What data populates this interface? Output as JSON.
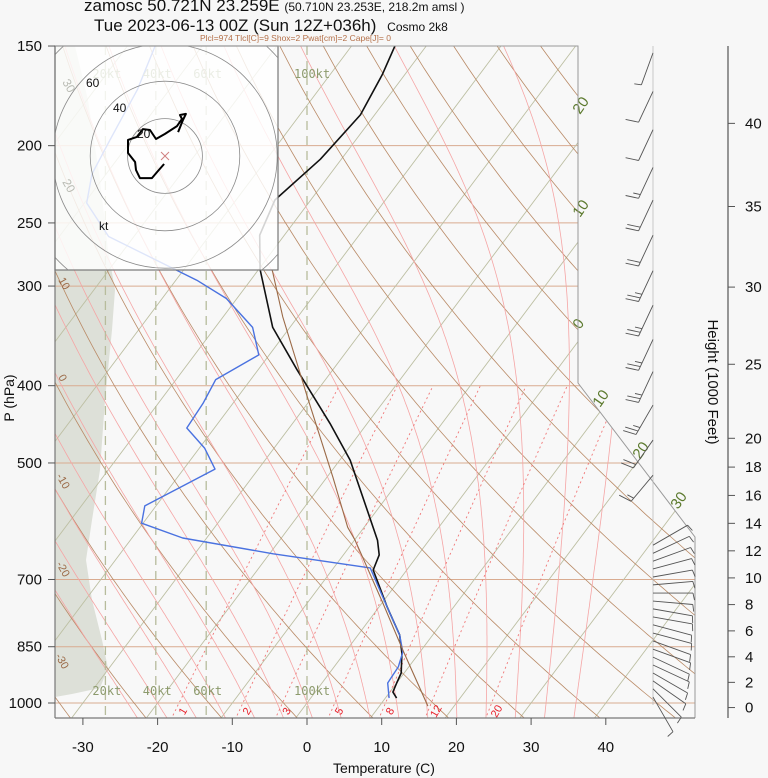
{
  "header": {
    "station": "zamosc 50.721N 23.259E",
    "location_detail": "(50.710N 23.253E, 218.2m amsl )",
    "valid_time": "Tue 2023-06-13 00Z (Sun 12Z+036h)",
    "model": "Cosmo 2k8",
    "indices": "Plcl=974 Tlcl[C]=9 Shox=2 Pwat[cm]=2 Cape[J]= 0"
  },
  "chart_data": {
    "type": "line",
    "title": "zamosc 50.721N 23.259E  Tue 2023-06-13 00Z (Sun 12Z+036h)",
    "xlabel": "Temperature (C)",
    "ylabel": "P (hPa)",
    "y2label": "Height (1000 Feet)",
    "xlim": [
      -33.7,
      36.4
    ],
    "ylim": [
      1050,
      150
    ],
    "x_ticks": [
      "-30",
      "-20",
      "-10",
      "0",
      "10",
      "20",
      "30",
      "40"
    ],
    "x_tick_values": [
      -30,
      -20,
      -10,
      0,
      10,
      20,
      30,
      40
    ],
    "y_ticks": [
      "150",
      "200",
      "250",
      "300",
      "400",
      "500",
      "700",
      "850",
      "1000"
    ],
    "y_tick_values": [
      150,
      200,
      250,
      300,
      400,
      500,
      700,
      850,
      1000
    ],
    "height_ticks": [
      "0",
      "2",
      "4",
      "6",
      "8",
      "10",
      "12",
      "14",
      "16",
      "18",
      "20",
      "25",
      "30",
      "35",
      "40"
    ],
    "height_tick_values_kft": [
      0,
      2,
      4,
      6,
      8,
      10,
      12,
      14,
      16,
      18,
      20,
      25,
      30,
      35,
      40
    ],
    "isobars_hpa": [
      150,
      200,
      250,
      300,
      400,
      500,
      700,
      850,
      1000
    ],
    "isotherm_labels": [
      "20",
      "10",
      "0",
      "10",
      "20",
      "30"
    ],
    "adiabat_labels": [
      "10",
      "0",
      "-10",
      "-20",
      "-30"
    ],
    "shaded_labels": [
      "30",
      "20"
    ],
    "mixing_ratio_gkg": [
      1,
      2,
      3,
      5,
      8,
      12,
      20
    ],
    "mixing_ratio_labels": [
      "1",
      "2",
      "3",
      "5",
      "8",
      "12",
      "20"
    ],
    "speed_scale_kt": [
      20,
      40,
      60,
      100
    ],
    "speed_scale_labels": [
      "20kt",
      "40kt",
      "60kt",
      "100kt"
    ],
    "series": [
      {
        "name": "temperature",
        "color": "#111111",
        "pressure": [
          986,
          969,
          944,
          917,
          866,
          822,
          758,
          681,
          652,
          625,
          496,
          446,
          382,
          338,
          286,
          259,
          234,
          208,
          183,
          163,
          150
        ],
        "values": [
          11.5,
          10.4,
          10.0,
          9.6,
          7.7,
          5.6,
          1.1,
          -4.5,
          -5.2,
          -6.9,
          -18.6,
          -25.0,
          -34.8,
          -42.3,
          -49.8,
          -53.3,
          -54.8,
          -52.8,
          -51.9,
          -53.0,
          -54.2
        ]
      },
      {
        "name": "dewpoint",
        "color": "#4a72e0",
        "pressure": [
          986,
          944,
          901,
          863,
          822,
          758,
          677,
          650,
          621,
          595,
          566,
          509,
          479,
          452,
          421,
          393,
          366,
          338,
          311,
          295,
          260,
          236,
          217,
          197,
          170,
          150
        ],
        "values": [
          10.5,
          8.8,
          8.6,
          7.7,
          5.6,
          1.1,
          -5.1,
          -19.5,
          -33.2,
          -40.2,
          -41.5,
          -35.8,
          -39.3,
          -43.7,
          -44.0,
          -44.7,
          -41.4,
          -45.0,
          -51.4,
          -57.2,
          -73.4,
          -79.7,
          -81.9,
          -82.9,
          -84.3,
          -86.3
        ]
      },
      {
        "name": "parcel",
        "color": "#9b6a47",
        "pressure": [
          1009,
          858,
          749,
          625,
          602,
          521,
          413,
          328,
          286
        ],
        "values": [
          16.5,
          7.5,
          0.1,
          -9.9,
          -12.2,
          -19.2,
          -30.7,
          -42.0,
          -48.2
        ]
      }
    ],
    "hodograph": {
      "ring_labels": [
        "20",
        "40",
        "60"
      ],
      "ring_values_kt": [
        20,
        40,
        60,
        80
      ],
      "unit_label": "kt",
      "u_kt": [
        -0.5,
        -4.3,
        -7.0,
        -13.4,
        -15.5,
        -16.0,
        -19.8,
        -19.8,
        -15.0,
        -11.8,
        -8.0,
        -4.8,
        0,
        6.4,
        9.1,
        8.0,
        11.2,
        9.6,
        7.0
      ],
      "v_kt": [
        -4.3,
        -8.6,
        -11.8,
        -11.8,
        -7.5,
        -3.2,
        1.6,
        8.6,
        10.2,
        14.4,
        13.9,
        9.1,
        11.8,
        16.0,
        19.8,
        21.9,
        22.5,
        19.3,
        12.8
      ]
    },
    "winds": {
      "pressure": [
        153,
        171,
        191,
        213,
        234,
        259,
        287,
        317,
        350,
        384,
        423,
        468,
        518,
        634,
        649,
        664,
        679,
        695,
        711,
        728,
        745,
        762,
        780,
        798,
        817,
        836,
        856,
        876,
        896,
        917,
        938,
        960,
        983
      ],
      "direction_deg": [
        200,
        205,
        205,
        205,
        205,
        205,
        205,
        205,
        205,
        205,
        210,
        215,
        220,
        60,
        65,
        70,
        75,
        80,
        85,
        90,
        95,
        100,
        100,
        105,
        105,
        110,
        110,
        115,
        115,
        120,
        125,
        135,
        150
      ],
      "speed_kt": [
        5,
        10,
        10,
        15,
        20,
        20,
        25,
        25,
        25,
        25,
        25,
        20,
        15,
        5,
        5,
        5,
        5,
        5,
        5,
        5,
        5,
        5,
        5,
        5,
        5,
        5,
        5,
        5,
        5,
        5,
        5,
        5,
        5
      ]
    }
  }
}
